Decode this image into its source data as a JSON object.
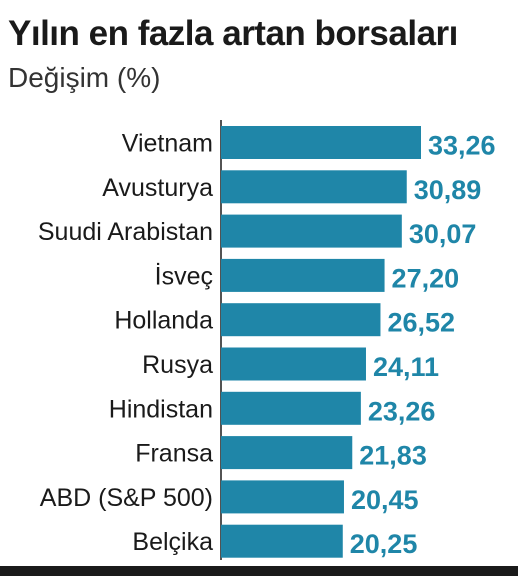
{
  "chart_data": {
    "type": "bar",
    "orientation": "horizontal",
    "title": "Yılın en fazla artan borsaları",
    "subtitle": "Değişim (%)",
    "categories": [
      "Vietnam",
      "Avusturya",
      "Suudi Arabistan",
      "İsveç",
      "Hollanda",
      "Rusya",
      "Hindistan",
      "Fransa",
      "ABD (S&P 500)",
      "Belçika"
    ],
    "values": [
      33.26,
      30.89,
      30.07,
      27.2,
      26.52,
      24.11,
      23.26,
      21.83,
      20.45,
      20.25
    ],
    "value_labels": [
      "33,26",
      "30,89",
      "30,07",
      "27,20",
      "26,52",
      "24,11",
      "23,26",
      "21,83",
      "20,45",
      "20,25"
    ],
    "xlim": [
      0,
      33.26
    ],
    "grid": false,
    "legend": "none",
    "bar_color": "#1f86a8",
    "label_color": "#1f86a8"
  }
}
